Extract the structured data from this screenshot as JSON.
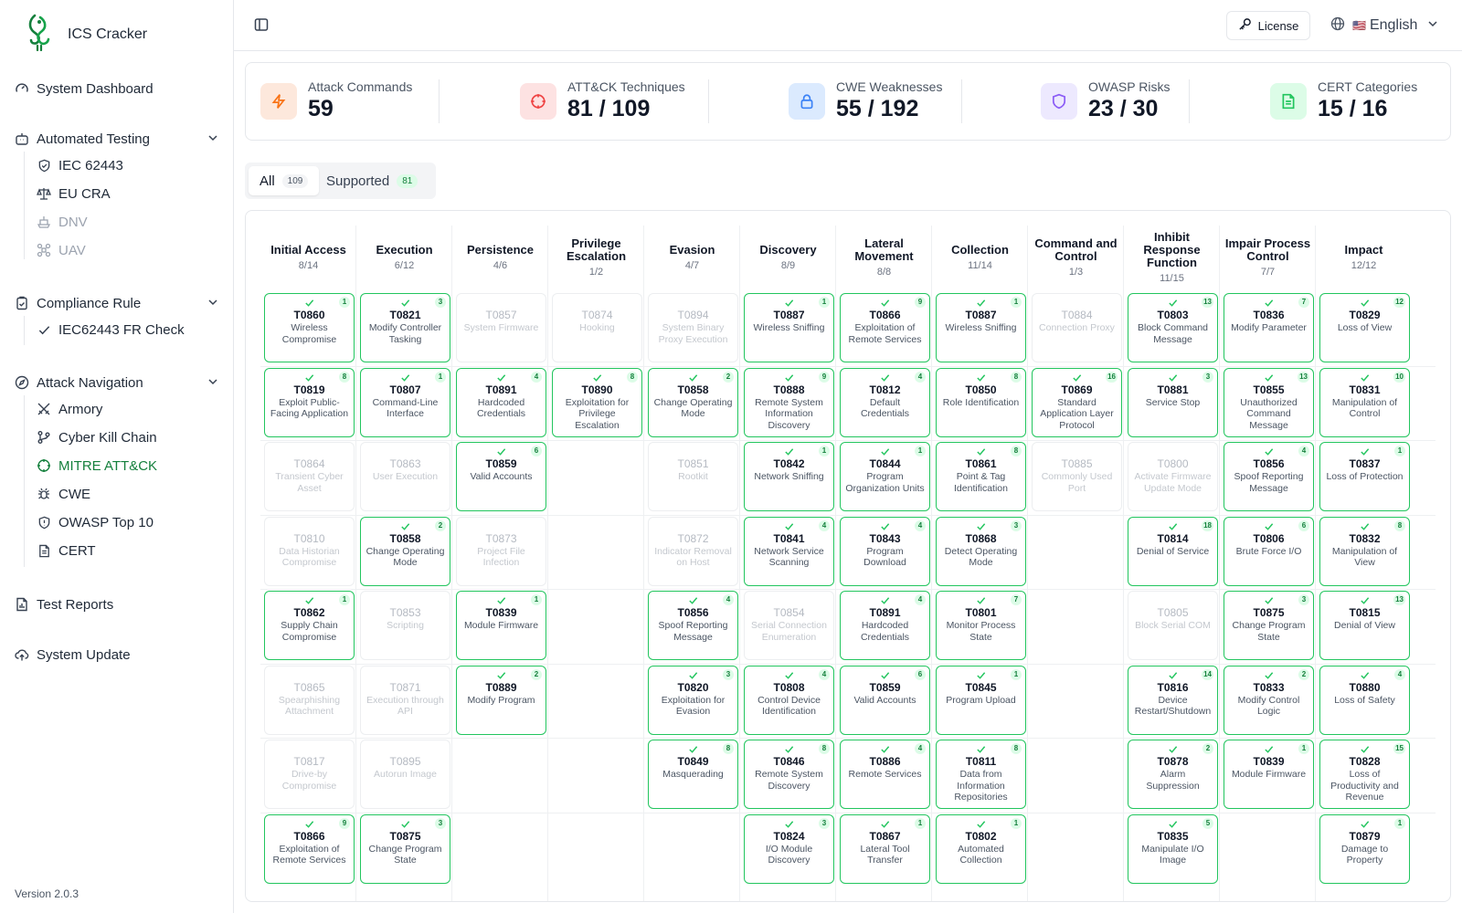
{
  "app": {
    "name": "ICS Cracker",
    "version": "Version 2.0.3"
  },
  "sidebar": {
    "dashboard": "System Dashboard",
    "automated_testing": {
      "label": "Automated Testing",
      "items": [
        {
          "label": "IEC 62443",
          "icon": "shield-check-icon",
          "disabled": false
        },
        {
          "label": "EU CRA",
          "icon": "scale-icon",
          "disabled": false
        },
        {
          "label": "DNV",
          "icon": "ship-icon",
          "disabled": true
        },
        {
          "label": "UAV",
          "icon": "drone-icon",
          "disabled": true
        }
      ]
    },
    "compliance_rule": {
      "label": "Compliance Rule",
      "items": [
        {
          "label": "IEC62443 FR Check",
          "icon": "check-icon"
        }
      ]
    },
    "attack_navigation": {
      "label": "Attack Navigation",
      "items": [
        {
          "label": "Armory",
          "icon": "swords-icon",
          "active": false
        },
        {
          "label": "Cyber Kill Chain",
          "icon": "git-branch-icon",
          "active": false
        },
        {
          "label": "MITRE ATT&CK",
          "icon": "crosshair-icon",
          "active": true
        },
        {
          "label": "CWE",
          "icon": "bug-icon",
          "active": false
        },
        {
          "label": "OWASP Top 10",
          "icon": "shield-icon",
          "active": false
        },
        {
          "label": "CERT",
          "icon": "file-text-icon",
          "active": false
        }
      ]
    },
    "test_reports": "Test Reports",
    "system_update": "System Update"
  },
  "topbar": {
    "license": "License",
    "language": "English",
    "language_flag": "🇺🇸"
  },
  "stats": [
    {
      "label": "Attack Commands",
      "value": "59",
      "icon": "zap-icon",
      "bg": "#fde8dc",
      "fg": "#f97316"
    },
    {
      "label": "ATT&CK Techniques",
      "value": "81 / 109",
      "icon": "crosshair-icon",
      "bg": "#fde2e2",
      "fg": "#ef4444"
    },
    {
      "label": "CWE Weaknesses",
      "value": "55 / 192",
      "icon": "lock-icon",
      "bg": "#dbeafe",
      "fg": "#3b82f6"
    },
    {
      "label": "OWASP Risks",
      "value": "23 / 30",
      "icon": "shield-icon",
      "bg": "#ede9fe",
      "fg": "#8b5cf6"
    },
    {
      "label": "CERT Categories",
      "value": "15 / 16",
      "icon": "file-text-icon",
      "bg": "#dcfce7",
      "fg": "#22c55e"
    }
  ],
  "filters": [
    {
      "label": "All",
      "count": "109"
    },
    {
      "label": "Supported",
      "count": "81"
    }
  ],
  "matrix": [
    {
      "title": [
        "Initial Access"
      ],
      "count": "8/14",
      "cells": [
        {
          "id": "T0860",
          "name": "Wireless Compromise",
          "on": true,
          "n": "1"
        },
        {
          "id": "T0819",
          "name": "Exploit Public-Facing Application",
          "on": true,
          "n": "8"
        },
        {
          "id": "T0864",
          "name": "Transient Cyber Asset",
          "on": false
        },
        {
          "id": "T0810",
          "name": "Data Historian Compromise",
          "on": false
        },
        {
          "id": "T0862",
          "name": "Supply Chain Compromise",
          "on": true,
          "n": "1"
        },
        {
          "id": "T0865",
          "name": "Spearphishing Attachment",
          "on": false
        },
        {
          "id": "T0817",
          "name": "Drive-by Compromise",
          "on": false
        },
        {
          "id": "T0866",
          "name": "Exploitation of Remote Services",
          "on": true,
          "n": "9"
        }
      ]
    },
    {
      "title": [
        "Execution"
      ],
      "count": "6/12",
      "cells": [
        {
          "id": "T0821",
          "name": "Modify Controller Tasking",
          "on": true,
          "n": "3"
        },
        {
          "id": "T0807",
          "name": "Command-Line Interface",
          "on": true,
          "n": "1"
        },
        {
          "id": "T0863",
          "name": "User Execution",
          "on": false
        },
        {
          "id": "T0858",
          "name": "Change Operating Mode",
          "on": true,
          "n": "2"
        },
        {
          "id": "T0853",
          "name": "Scripting",
          "on": false
        },
        {
          "id": "T0871",
          "name": "Execution through API",
          "on": false
        },
        {
          "id": "T0895",
          "name": "Autorun Image",
          "on": false
        },
        {
          "id": "T0875",
          "name": "Change Program State",
          "on": true,
          "n": "3"
        }
      ]
    },
    {
      "title": [
        "Persistence"
      ],
      "count": "4/6",
      "cells": [
        {
          "id": "T0857",
          "name": "System Firmware",
          "on": false
        },
        {
          "id": "T0891",
          "name": "Hardcoded Credentials",
          "on": true,
          "n": "4"
        },
        {
          "id": "T0859",
          "name": "Valid Accounts",
          "on": true,
          "n": "6"
        },
        {
          "id": "T0873",
          "name": "Project File Infection",
          "on": false
        },
        {
          "id": "T0839",
          "name": "Module Firmware",
          "on": true,
          "n": "1"
        },
        {
          "id": "T0889",
          "name": "Modify Program",
          "on": true,
          "n": "2"
        }
      ]
    },
    {
      "title": [
        "Privilege",
        "Escalation"
      ],
      "count": "1/2",
      "cells": [
        {
          "id": "T0874",
          "name": "Hooking",
          "on": false
        },
        {
          "id": "T0890",
          "name": "Exploitation for Privilege Escalation",
          "on": true,
          "n": "8"
        }
      ]
    },
    {
      "title": [
        "Evasion"
      ],
      "count": "4/7",
      "cells": [
        {
          "id": "T0894",
          "name": "System Binary Proxy Execution",
          "on": false
        },
        {
          "id": "T0858",
          "name": "Change Operating Mode",
          "on": true,
          "n": "2"
        },
        {
          "id": "T0851",
          "name": "Rootkit",
          "on": false
        },
        {
          "id": "T0872",
          "name": "Indicator Removal on Host",
          "on": false
        },
        {
          "id": "T0856",
          "name": "Spoof Reporting Message",
          "on": true,
          "n": "4"
        },
        {
          "id": "T0820",
          "name": "Exploitation for Evasion",
          "on": true,
          "n": "3"
        },
        {
          "id": "T0849",
          "name": "Masquerading",
          "on": true,
          "n": "8"
        }
      ]
    },
    {
      "title": [
        "Discovery"
      ],
      "count": "8/9",
      "cells": [
        {
          "id": "T0887",
          "name": "Wireless Sniffing",
          "on": true,
          "n": "1"
        },
        {
          "id": "T0888",
          "name": "Remote System Information Discovery",
          "on": true,
          "n": "9"
        },
        {
          "id": "T0842",
          "name": "Network Sniffing",
          "on": true,
          "n": "1"
        },
        {
          "id": "T0841",
          "name": "Network Service Scanning",
          "on": true,
          "n": "4"
        },
        {
          "id": "T0854",
          "name": "Serial Connection Enumeration",
          "on": false
        },
        {
          "id": "T0808",
          "name": "Control Device Identification",
          "on": true,
          "n": "4"
        },
        {
          "id": "T0846",
          "name": "Remote System Discovery",
          "on": true,
          "n": "8"
        },
        {
          "id": "T0824",
          "name": "I/O Module Discovery",
          "on": true,
          "n": "3"
        }
      ]
    },
    {
      "title": [
        "Lateral",
        "Movement"
      ],
      "count": "8/8",
      "cells": [
        {
          "id": "T0866",
          "name": "Exploitation of Remote Services",
          "on": true,
          "n": "9"
        },
        {
          "id": "T0812",
          "name": "Default Credentials",
          "on": true,
          "n": "4"
        },
        {
          "id": "T0844",
          "name": "Program Organization Units",
          "on": true,
          "n": "1"
        },
        {
          "id": "T0843",
          "name": "Program Download",
          "on": true,
          "n": "4"
        },
        {
          "id": "T0891",
          "name": "Hardcoded Credentials",
          "on": true,
          "n": "4"
        },
        {
          "id": "T0859",
          "name": "Valid Accounts",
          "on": true,
          "n": "6"
        },
        {
          "id": "T0886",
          "name": "Remote Services",
          "on": true,
          "n": "4"
        },
        {
          "id": "T0867",
          "name": "Lateral Tool Transfer",
          "on": true,
          "n": "1"
        }
      ]
    },
    {
      "title": [
        "Collection"
      ],
      "count": "11/14",
      "cells": [
        {
          "id": "T0887",
          "name": "Wireless Sniffing",
          "on": true,
          "n": "1"
        },
        {
          "id": "T0850",
          "name": "Role Identification",
          "on": true,
          "n": "8"
        },
        {
          "id": "T0861",
          "name": "Point & Tag Identification",
          "on": true,
          "n": "8"
        },
        {
          "id": "T0868",
          "name": "Detect Operating Mode",
          "on": true,
          "n": "3"
        },
        {
          "id": "T0801",
          "name": "Monitor Process State",
          "on": true,
          "n": "7"
        },
        {
          "id": "T0845",
          "name": "Program Upload",
          "on": true,
          "n": "1"
        },
        {
          "id": "T0811",
          "name": "Data from Information Repositories",
          "on": true,
          "n": "8"
        },
        {
          "id": "T0802",
          "name": "Automated Collection",
          "on": true,
          "n": "1"
        }
      ]
    },
    {
      "title": [
        "Command and",
        "Control"
      ],
      "count": "1/3",
      "cells": [
        {
          "id": "T0884",
          "name": "Connection Proxy",
          "on": false
        },
        {
          "id": "T0869",
          "name": "Standard Application Layer Protocol",
          "on": true,
          "n": "16"
        },
        {
          "id": "T0885",
          "name": "Commonly Used Port",
          "on": false
        }
      ]
    },
    {
      "title": [
        "Inhibit",
        "Response",
        "Function"
      ],
      "count": "11/15",
      "cells": [
        {
          "id": "T0803",
          "name": "Block Command Message",
          "on": true,
          "n": "13"
        },
        {
          "id": "T0881",
          "name": "Service Stop",
          "on": true,
          "n": "3"
        },
        {
          "id": "T0800",
          "name": "Activate Firmware Update Mode",
          "on": false
        },
        {
          "id": "T0814",
          "name": "Denial of Service",
          "on": true,
          "n": "18"
        },
        {
          "id": "T0805",
          "name": "Block Serial COM",
          "on": false
        },
        {
          "id": "T0816",
          "name": "Device Restart/Shutdown",
          "on": true,
          "n": "14"
        },
        {
          "id": "T0878",
          "name": "Alarm Suppression",
          "on": true,
          "n": "2"
        },
        {
          "id": "T0835",
          "name": "Manipulate I/O Image",
          "on": true,
          "n": "5"
        }
      ]
    },
    {
      "title": [
        "Impair Process",
        "Control"
      ],
      "count": "7/7",
      "cells": [
        {
          "id": "T0836",
          "name": "Modify Parameter",
          "on": true,
          "n": "7"
        },
        {
          "id": "T0855",
          "name": "Unauthorized Command Message",
          "on": true,
          "n": "13"
        },
        {
          "id": "T0856",
          "name": "Spoof Reporting Message",
          "on": true,
          "n": "4"
        },
        {
          "id": "T0806",
          "name": "Brute Force I/O",
          "on": true,
          "n": "6"
        },
        {
          "id": "T0875",
          "name": "Change Program State",
          "on": true,
          "n": "3"
        },
        {
          "id": "T0833",
          "name": "Modify Control Logic",
          "on": true,
          "n": "2"
        },
        {
          "id": "T0839",
          "name": "Module Firmware",
          "on": true,
          "n": "1"
        }
      ]
    },
    {
      "title": [
        "Impact"
      ],
      "count": "12/12",
      "cells": [
        {
          "id": "T0829",
          "name": "Loss of View",
          "on": true,
          "n": "12"
        },
        {
          "id": "T0831",
          "name": "Manipulation of Control",
          "on": true,
          "n": "10"
        },
        {
          "id": "T0837",
          "name": "Loss of Protection",
          "on": true,
          "n": "1"
        },
        {
          "id": "T0832",
          "name": "Manipulation of View",
          "on": true,
          "n": "8"
        },
        {
          "id": "T0815",
          "name": "Denial of View",
          "on": true,
          "n": "13"
        },
        {
          "id": "T0880",
          "name": "Loss of Safety",
          "on": true,
          "n": "4"
        },
        {
          "id": "T0828",
          "name": "Loss of Productivity and Revenue",
          "on": true,
          "n": "15"
        },
        {
          "id": "T0879",
          "name": "Damage to Property",
          "on": true,
          "n": "1"
        }
      ]
    }
  ]
}
